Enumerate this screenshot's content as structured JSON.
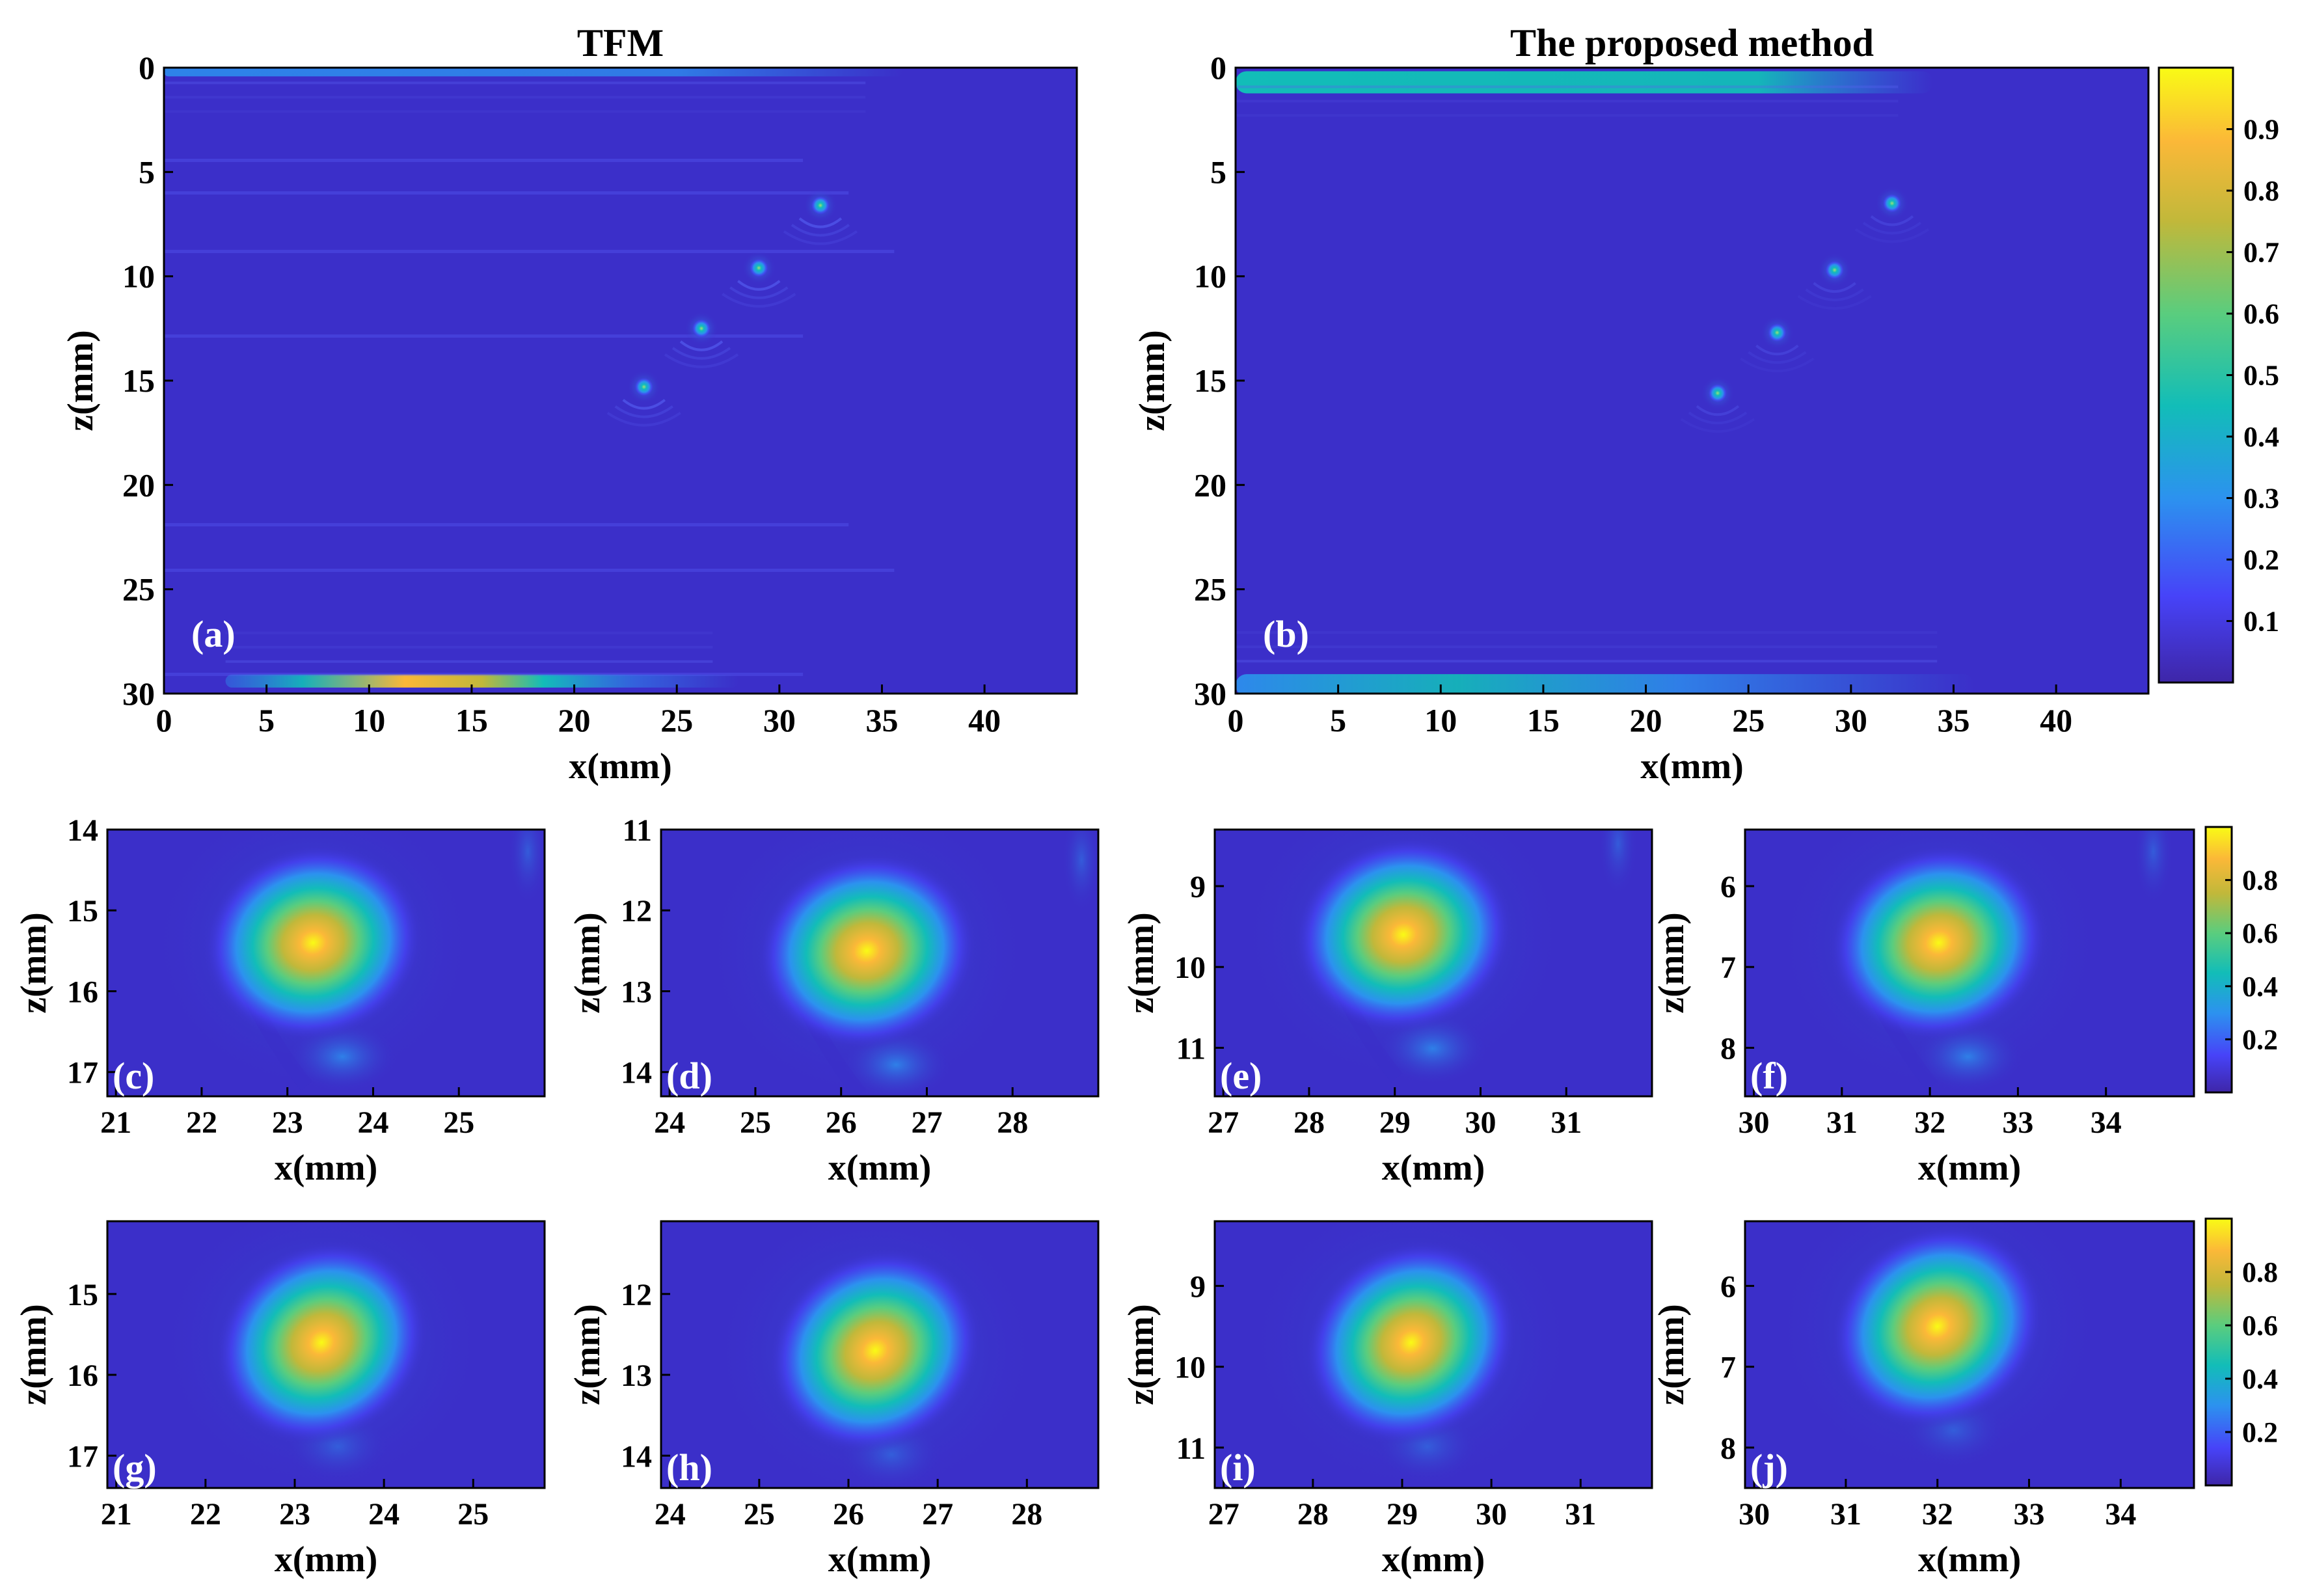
{
  "colors": {
    "background": "#3b2fc9",
    "colormap": [
      "#3e26a8",
      "#4743f8",
      "#2c92ef",
      "#12bdb8",
      "#5acd7e",
      "#c1b83a",
      "#fbb838",
      "#f9fb15"
    ]
  },
  "chart_data": [
    {
      "type": "heatmap",
      "id": "a",
      "title": "TFM",
      "panel_label": "(a)",
      "xlabel": "x(mm)",
      "ylabel": "z(mm)",
      "xlim": [
        0,
        44.5
      ],
      "ylim": [
        0,
        30
      ],
      "xticks": [
        0,
        5,
        10,
        15,
        20,
        25,
        30,
        35,
        40
      ],
      "yticks": [
        0,
        5,
        10,
        15,
        20,
        25,
        30
      ],
      "defects": [
        {
          "x": 23.4,
          "z": 15.3,
          "intensity": 0.55
        },
        {
          "x": 26.2,
          "z": 12.5,
          "intensity": 0.55
        },
        {
          "x": 29.0,
          "z": 9.6,
          "intensity": 0.55
        },
        {
          "x": 32.0,
          "z": 6.6,
          "intensity": 0.55
        }
      ],
      "bands": [
        {
          "z": 0.2,
          "x_from": 0,
          "x_to": 36,
          "intensity": 0.35
        },
        {
          "z": 29.4,
          "x_from": 3,
          "x_to": 28,
          "intensity": 0.9
        }
      ]
    },
    {
      "type": "heatmap",
      "id": "b",
      "title": "The proposed method",
      "panel_label": "(b)",
      "xlabel": "x(mm)",
      "ylabel": "z(mm)",
      "xlim": [
        0,
        44.5
      ],
      "ylim": [
        0,
        30
      ],
      "xticks": [
        0,
        5,
        10,
        15,
        20,
        25,
        30,
        35,
        40
      ],
      "yticks": [
        0,
        5,
        10,
        15,
        20,
        25,
        30
      ],
      "colorbar": {
        "range": [
          0,
          1
        ],
        "ticks": [
          0.1,
          0.2,
          0.3,
          0.4,
          0.5,
          0.6,
          0.7,
          0.8,
          0.9
        ]
      },
      "defects": [
        {
          "x": 23.5,
          "z": 15.6,
          "intensity": 0.6
        },
        {
          "x": 26.4,
          "z": 12.7,
          "intensity": 0.6
        },
        {
          "x": 29.2,
          "z": 9.7,
          "intensity": 0.6
        },
        {
          "x": 32.0,
          "z": 6.5,
          "intensity": 0.6
        }
      ],
      "bands": [
        {
          "z": 0.7,
          "x_from": 0,
          "x_to": 34,
          "intensity": 0.45
        },
        {
          "z": 29.6,
          "x_from": 0,
          "x_to": 36,
          "intensity": 0.4
        }
      ]
    },
    {
      "type": "heatmap",
      "id": "c",
      "panel_label": "(c)",
      "xlabel": "x(mm)",
      "ylabel": "z(mm)",
      "xlim": [
        20.9,
        26
      ],
      "ylim": [
        14,
        17.3
      ],
      "xticks": [
        21,
        22,
        23,
        24,
        25
      ],
      "yticks": [
        14,
        15,
        16,
        17
      ],
      "peak": {
        "x": 23.3,
        "z": 15.4,
        "intensity": 0.9
      }
    },
    {
      "type": "heatmap",
      "id": "d",
      "panel_label": "(d)",
      "xlabel": "x(mm)",
      "ylabel": "z(mm)",
      "xlim": [
        23.9,
        29
      ],
      "ylim": [
        11,
        14.3
      ],
      "xticks": [
        24,
        25,
        26,
        27,
        28
      ],
      "yticks": [
        11,
        12,
        13,
        14
      ],
      "peak": {
        "x": 26.3,
        "z": 12.5,
        "intensity": 0.9
      }
    },
    {
      "type": "heatmap",
      "id": "e",
      "panel_label": "(e)",
      "xlabel": "x(mm)",
      "ylabel": "z(mm)",
      "xlim": [
        26.9,
        32
      ],
      "ylim": [
        8.3,
        11.6
      ],
      "xticks": [
        27,
        28,
        29,
        30,
        31
      ],
      "yticks": [
        9,
        10,
        11
      ],
      "peak": {
        "x": 29.1,
        "z": 9.6,
        "intensity": 0.92
      }
    },
    {
      "type": "heatmap",
      "id": "f",
      "panel_label": "(f)",
      "xlabel": "x(mm)",
      "ylabel": "z(mm)",
      "xlim": [
        29.9,
        35
      ],
      "ylim": [
        5.3,
        8.6
      ],
      "xticks": [
        30,
        31,
        32,
        33,
        34
      ],
      "yticks": [
        6,
        7,
        8
      ],
      "peak": {
        "x": 32.1,
        "z": 6.7,
        "intensity": 0.9
      },
      "colorbar": {
        "range": [
          0,
          1
        ],
        "ticks": [
          0.2,
          0.4,
          0.6,
          0.8
        ]
      }
    },
    {
      "type": "heatmap",
      "id": "g",
      "panel_label": "(g)",
      "xlabel": "x(mm)",
      "ylabel": "z(mm)",
      "xlim": [
        20.9,
        25.8
      ],
      "ylim": [
        14.1,
        17.4
      ],
      "xticks": [
        21,
        22,
        23,
        24,
        25
      ],
      "yticks": [
        15,
        16,
        17
      ],
      "peak": {
        "x": 23.3,
        "z": 15.6,
        "intensity": 0.95
      }
    },
    {
      "type": "heatmap",
      "id": "h",
      "panel_label": "(h)",
      "xlabel": "x(mm)",
      "ylabel": "z(mm)",
      "xlim": [
        23.9,
        28.8
      ],
      "ylim": [
        11.1,
        14.4
      ],
      "xticks": [
        24,
        25,
        26,
        27,
        28
      ],
      "yticks": [
        12,
        13,
        14
      ],
      "peak": {
        "x": 26.3,
        "z": 12.7,
        "intensity": 0.95
      }
    },
    {
      "type": "heatmap",
      "id": "i",
      "panel_label": "(i)",
      "xlabel": "x(mm)",
      "ylabel": "z(mm)",
      "xlim": [
        26.9,
        31.8
      ],
      "ylim": [
        8.2,
        11.5
      ],
      "xticks": [
        27,
        28,
        29,
        30,
        31
      ],
      "yticks": [
        9,
        10,
        11
      ],
      "peak": {
        "x": 29.1,
        "z": 9.7,
        "intensity": 0.95
      }
    },
    {
      "type": "heatmap",
      "id": "j",
      "panel_label": "(j)",
      "xlabel": "x(mm)",
      "ylabel": "z(mm)",
      "xlim": [
        29.9,
        34.8
      ],
      "ylim": [
        5.2,
        8.5
      ],
      "xticks": [
        30,
        31,
        32,
        33,
        34
      ],
      "yticks": [
        6,
        7,
        8
      ],
      "peak": {
        "x": 32.0,
        "z": 6.5,
        "intensity": 0.95
      },
      "colorbar": {
        "range": [
          0,
          1
        ],
        "ticks": [
          0.2,
          0.4,
          0.6,
          0.8
        ]
      }
    }
  ]
}
